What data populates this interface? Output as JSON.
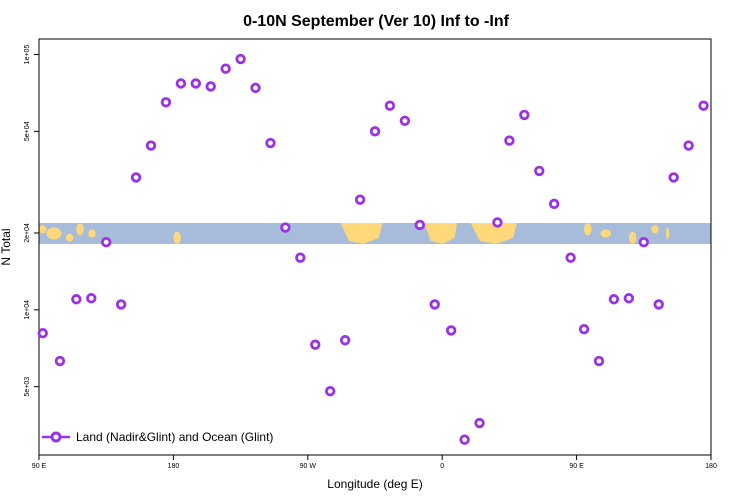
{
  "chart_data": {
    "type": "scatter",
    "title": "0-10N September (Ver 10)   Inf to -Inf",
    "xlabel": "Longitude (deg E)",
    "ylabel": "N Total",
    "x_ticks": [
      {
        "value": 90,
        "label": "90 E"
      },
      {
        "value": 180,
        "label": "180"
      },
      {
        "value": 270,
        "label": "90 W"
      },
      {
        "value": 360,
        "label": "0"
      },
      {
        "value": 450,
        "label": "90 E"
      },
      {
        "value": 540,
        "label": "180"
      }
    ],
    "y_ticks": [
      {
        "value": 5000,
        "label": "5e+03"
      },
      {
        "value": 10000,
        "label": "1e+04"
      },
      {
        "value": 20000,
        "label": "2e+04"
      },
      {
        "value": 50000,
        "label": "5e+04"
      },
      {
        "value": 100000,
        "label": "1e+05"
      }
    ],
    "xlim": [
      90,
      540
    ],
    "ylim_log": [
      2700,
      115000
    ],
    "y_scale": "log",
    "legend_position": "bottom-left",
    "series": [
      {
        "name": "Land (Nadir&Glint) and Ocean (Glint)",
        "color": "#9b30e6",
        "x": [
          92.5,
          104,
          115,
          125,
          135,
          145,
          155,
          165,
          175,
          185,
          195,
          205,
          215,
          225,
          235,
          245,
          255,
          265,
          275,
          285,
          295,
          305,
          315,
          325,
          335,
          345,
          355,
          366,
          375,
          385,
          397,
          405,
          415,
          425,
          435,
          446,
          455,
          465,
          475,
          485,
          495,
          505,
          515,
          525,
          535
        ],
        "y": [
          8100,
          6300,
          11000,
          11100,
          18400,
          10500,
          33000,
          44000,
          65000,
          77000,
          77000,
          75000,
          88000,
          96000,
          74000,
          45000,
          21000,
          16000,
          7300,
          4800,
          7600,
          27000,
          50000,
          63000,
          55000,
          21500,
          10500,
          8300,
          3100,
          3600,
          22000,
          46000,
          58000,
          35000,
          26000,
          16000,
          8400,
          6300,
          11000,
          11100,
          18400,
          10500,
          33000,
          44000,
          63000
        ]
      }
    ],
    "background_map": {
      "ocean_color": "#a7bcda",
      "land_color": "#ffd879",
      "lat_range": "0-10N"
    }
  }
}
